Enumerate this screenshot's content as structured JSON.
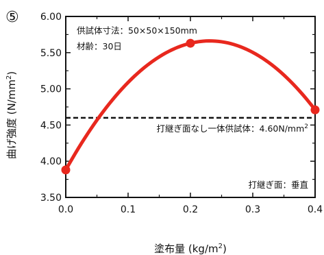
{
  "panel_label": "⑤",
  "chart_data": {
    "type": "line",
    "xlabel": "塗布量 (kg/m",
    "xlabel_sup": "2",
    "xlabel_close": ")",
    "ylabel": "曲げ強度 (N/mm",
    "ylabel_sup": "2",
    "ylabel_close": ")",
    "xlim": [
      0.0,
      0.4
    ],
    "ylim": [
      3.5,
      6.0
    ],
    "xticks": [
      "0.0",
      "0.1",
      "0.2",
      "0.3",
      "0.4"
    ],
    "yticks": [
      "3.50",
      "4.00",
      "4.50",
      "5.00",
      "5.50",
      "6.00"
    ],
    "grid": false,
    "series": [
      {
        "color": "#e8281e",
        "points": [
          {
            "x": 0.0,
            "y": 3.88
          },
          {
            "x": 0.2,
            "y": 5.63
          },
          {
            "x": 0.4,
            "y": 4.71
          }
        ]
      }
    ],
    "reference_line": {
      "y": 4.6,
      "style": "dashed",
      "label": "打継ぎ面なし一体供試体：4.60N/mm",
      "label_sup": "2"
    },
    "annotations": {
      "specimen_size": "供試体寸法：50×50×150mm",
      "age": "材齢：30日",
      "joint": "打継ぎ面：垂直"
    }
  }
}
